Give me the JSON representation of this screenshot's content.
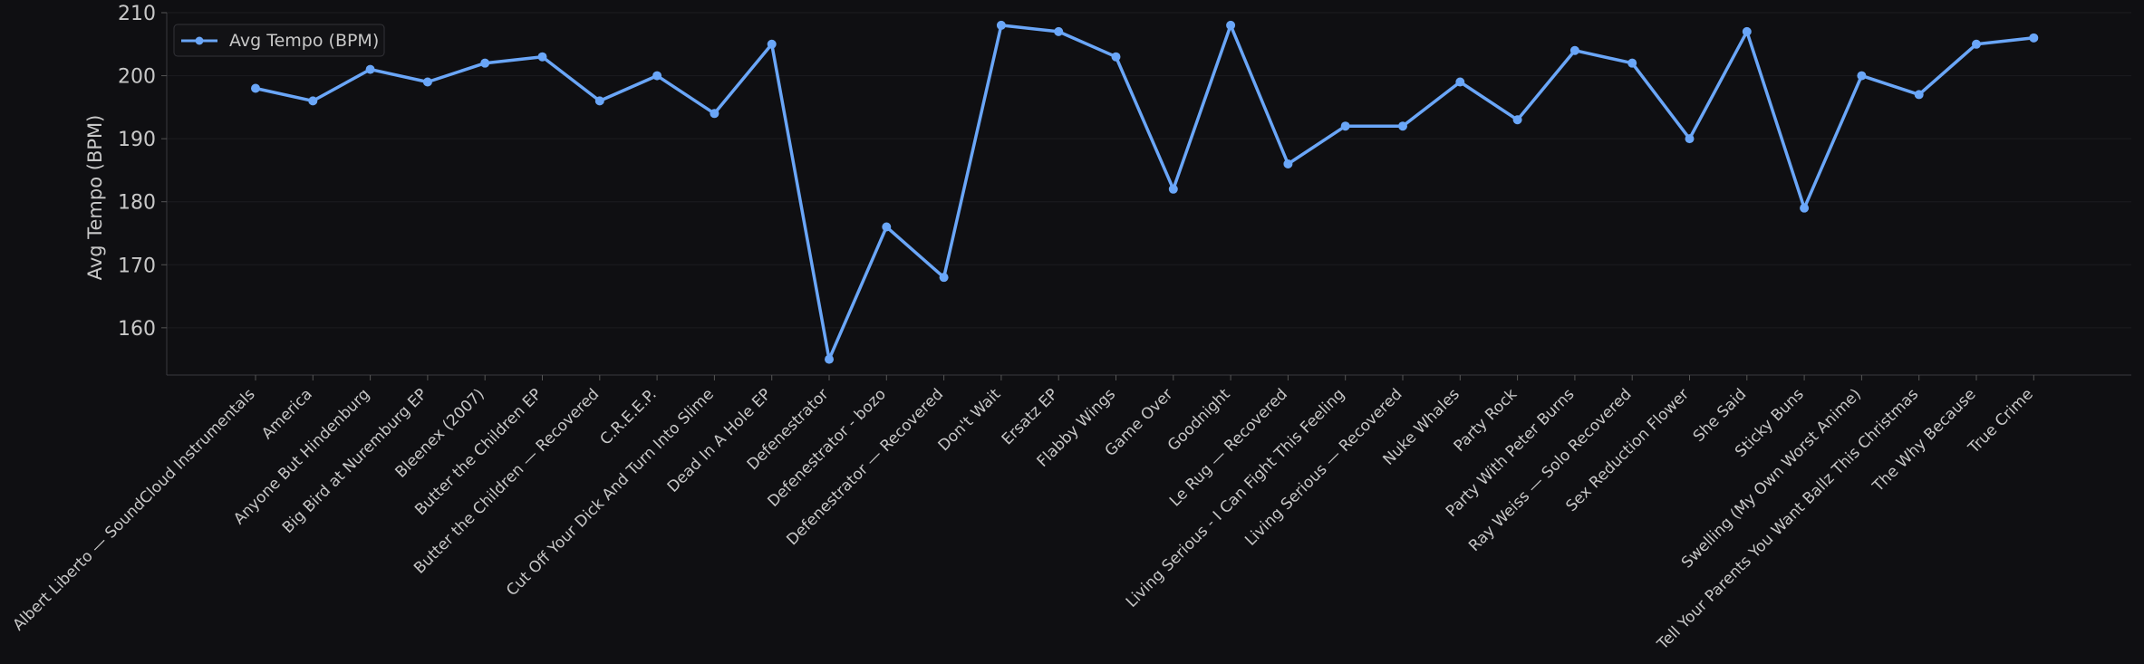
{
  "chart_data": {
    "type": "line",
    "title": "",
    "xlabel": "",
    "ylabel": "Avg Tempo (BPM)",
    "ylim": [
      152.5,
      210
    ],
    "yticks": [
      160,
      170,
      180,
      190,
      200,
      210
    ],
    "grid": "horizontal",
    "legend_position": "top-left",
    "categories": [
      "Albert Liberto — SoundCloud Instrumentals",
      "America",
      "Anyone But Hindenburg",
      "Big Bird at Nuremburg EP",
      "Bleenex (2007)",
      "Butter the Children EP",
      "Butter the Children — Recovered",
      "C.R.E.E.P.",
      "Cut Off Your Dick And Turn Into Slime",
      "Dead In A Hole EP",
      "Defenestrator",
      "Defenestrator - bozo",
      "Defenestrator — Recovered",
      "Don't Wait",
      "Ersatz EP",
      "Flabby Wings",
      "Game Over",
      "Goodnight",
      "Le Rug — Recovered",
      "Living Serious - I Can Fight This Feeling",
      "Living Serious — Recovered",
      "Nuke Whales",
      "Party Rock",
      "Party With Peter Burns",
      "Ray Weiss — Solo Recovered",
      "Sex Reduction Flower",
      "She Said",
      "Sticky Buns",
      "Swelling (My Own Worst Anime)",
      "Tell Your Parents You Want Ballz This Christmas",
      "The Why Because",
      "True Crime"
    ],
    "series": [
      {
        "name": "Avg Tempo (BPM)",
        "color": "#6aa6f8",
        "values": [
          198,
          196,
          201,
          199,
          202,
          203,
          196,
          200,
          194,
          205,
          155,
          176,
          168,
          208,
          207,
          203,
          182,
          208,
          186,
          192,
          192,
          199,
          193,
          204,
          202,
          190,
          207,
          179,
          200,
          197,
          205,
          206
        ]
      }
    ]
  }
}
